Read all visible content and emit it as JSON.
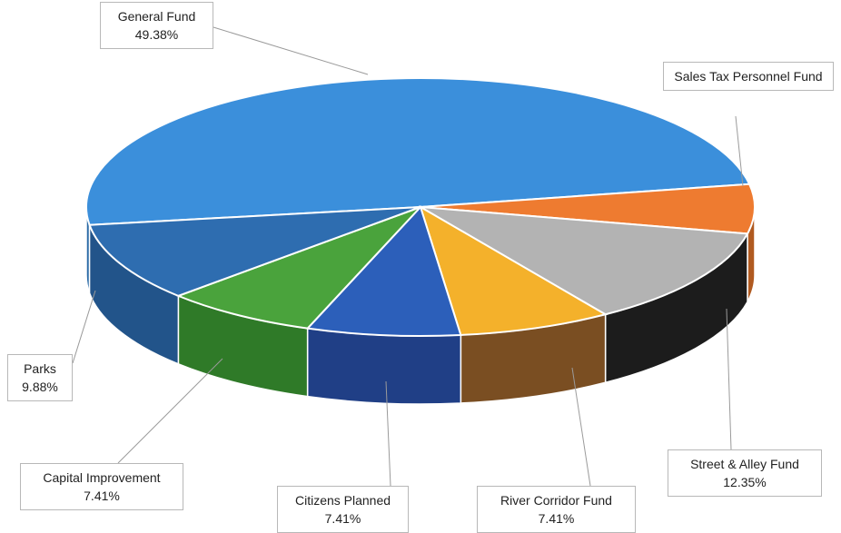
{
  "chart_data": {
    "type": "pie3d",
    "categories": [
      "General Fund",
      "Sales Tax Personnel Fund",
      "Street & Alley Fund",
      "River Corridor Fund",
      "Citizens Planned",
      "Capital Improvement",
      "Parks"
    ],
    "values": [
      49.38,
      6.16,
      12.35,
      7.41,
      7.41,
      7.41,
      9.88
    ],
    "value_labels": [
      "49.38%",
      null,
      "12.35%",
      "7.41%",
      "7.41%",
      "7.41%",
      "9.88%"
    ],
    "colors": [
      "#3b8fdb",
      "#ee7b30",
      "#b3b3b3",
      "#f4b12b",
      "#2c5fba",
      "#4aa33c",
      "#2e6db0"
    ],
    "side_colors": [
      "#2a6aa6",
      "#b05a20",
      "#1c1c1c",
      "#7a4e22",
      "#203f86",
      "#2f7a28",
      "#22548a"
    ]
  }
}
